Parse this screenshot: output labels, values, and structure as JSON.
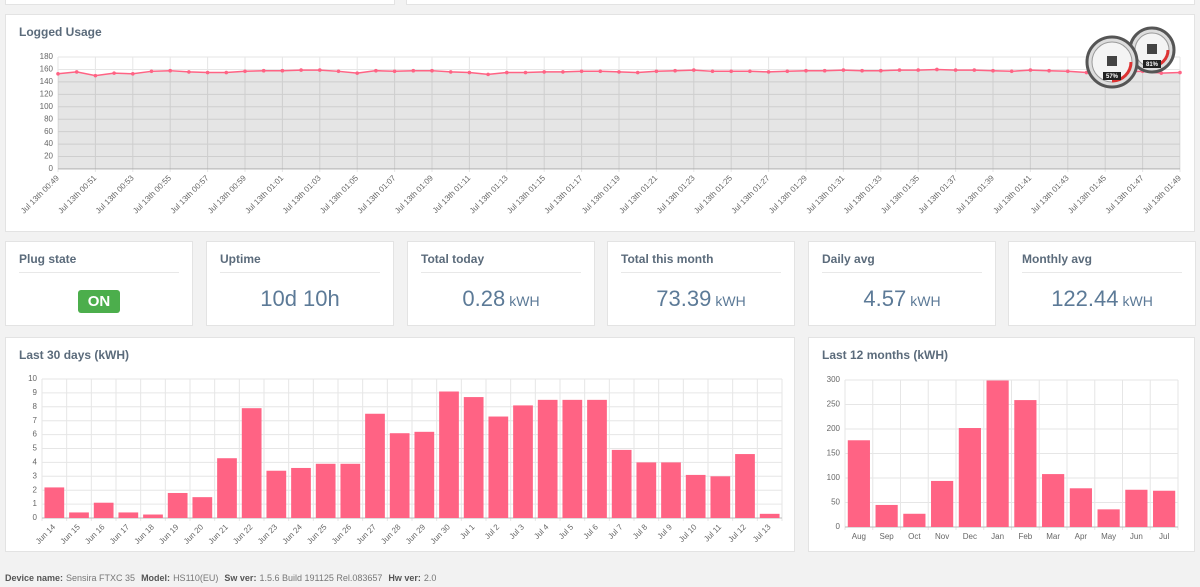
{
  "logged_usage": {
    "title": "Logged Usage",
    "chart": {
      "type": "line",
      "categories": [
        "Jul 13th 00:49",
        null,
        "Jul 13th 00:51",
        null,
        "Jul 13th 00:53",
        null,
        "Jul 13th 00:55",
        null,
        "Jul 13th 00:57",
        null,
        "Jul 13th 00:59",
        null,
        "Jul 13th 01:01",
        null,
        "Jul 13th 01:03",
        null,
        "Jul 13th 01:05",
        null,
        "Jul 13th 01:07",
        null,
        "Jul 13th 01:09",
        null,
        "Jul 13th 01:11",
        null,
        "Jul 13th 01:13",
        null,
        "Jul 13th 01:15",
        null,
        "Jul 13th 01:17",
        null,
        "Jul 13th 01:19",
        null,
        "Jul 13th 01:21",
        null,
        "Jul 13th 01:23",
        null,
        "Jul 13th 01:25",
        null,
        "Jul 13th 01:27",
        null,
        "Jul 13th 01:29",
        null,
        "Jul 13th 01:31",
        null,
        "Jul 13th 01:33",
        null,
        "Jul 13th 01:35",
        null,
        "Jul 13th 01:37",
        null,
        "Jul 13th 01:39",
        null,
        "Jul 13th 01:41",
        null,
        "Jul 13th 01:43",
        null,
        "Jul 13th 01:45",
        null,
        "Jul 13th 01:47",
        null,
        "Jul 13th 01:49"
      ],
      "values": [
        153,
        156,
        150,
        154,
        153,
        157,
        158,
        156,
        155,
        155,
        157,
        158,
        158,
        159,
        159,
        157,
        154,
        158,
        157,
        158,
        158,
        156,
        155,
        152,
        155,
        155,
        156,
        156,
        157,
        157,
        156,
        155,
        157,
        158,
        159,
        157,
        157,
        157,
        156,
        157,
        158,
        158,
        159,
        158,
        158,
        159,
        159,
        160,
        159,
        159,
        158,
        157,
        159,
        158,
        157,
        155,
        155,
        156,
        157,
        154,
        155
      ],
      "color": "#ff6384",
      "ylim": [
        0,
        180
      ],
      "yticks": [
        0,
        20,
        40,
        60,
        80,
        100,
        120,
        140,
        160,
        180
      ],
      "grid": true
    }
  },
  "gauges": [
    "57%",
    "81%"
  ],
  "cards": [
    {
      "title": "Plug state",
      "value": "ON"
    },
    {
      "title": "Uptime",
      "value": "10d 10h"
    },
    {
      "title": "Total today",
      "value": 0.28,
      "unit": "kWH"
    },
    {
      "title": "Total this month",
      "value": 73.39,
      "unit": "kWH"
    },
    {
      "title": "Daily avg",
      "value": 4.57,
      "unit": "kWH"
    },
    {
      "title": "Monthly avg",
      "value": 122.44,
      "unit": "kWH"
    }
  ],
  "last_30_days": {
    "title": "Last 30 days (kWH)",
    "chart": {
      "type": "bar",
      "categories": [
        "Jun 14",
        "Jun 15",
        "Jun 16",
        "Jun 17",
        "Jun 18",
        "Jun 19",
        "Jun 20",
        "Jun 21",
        "Jun 22",
        "Jun 23",
        "Jun 24",
        "Jun 25",
        "Jun 26",
        "Jun 27",
        "Jun 28",
        "Jun 29",
        "Jun 30",
        "Jul 1",
        "Jul 2",
        "Jul 3",
        "Jul 4",
        "Jul 5",
        "Jul 6",
        "Jul 7",
        "Jul 8",
        "Jul 9",
        "Jul 10",
        "Jul 11",
        "Jul 12",
        "Jul 13"
      ],
      "values": [
        2.2,
        0.4,
        1.1,
        0.4,
        0.25,
        1.8,
        1.5,
        4.3,
        7.9,
        3.4,
        3.6,
        3.9,
        3.9,
        7.5,
        6.1,
        6.2,
        9.1,
        8.7,
        7.3,
        8.1,
        8.5,
        8.5,
        8.5,
        4.9,
        4.0,
        4.0,
        3.1,
        3.0,
        4.6,
        0.3
      ],
      "color": "#ff6384",
      "ylim": [
        0,
        10
      ],
      "yticks": [
        0,
        1,
        2,
        3,
        4,
        5,
        6,
        7,
        8,
        9,
        10
      ],
      "grid": true
    }
  },
  "last_12_months": {
    "title": "Last 12 months (kWH)",
    "chart": {
      "type": "bar",
      "categories": [
        "Aug",
        "Sep",
        "Oct",
        "Nov",
        "Dec",
        "Jan",
        "Feb",
        "Mar",
        "Apr",
        "May",
        "Jun",
        "Jul"
      ],
      "values": [
        177,
        45,
        27,
        94,
        202,
        299,
        259,
        108,
        79,
        36,
        76,
        74
      ],
      "color": "#ff6384",
      "ylim": [
        0,
        300
      ],
      "yticks": [
        0,
        50,
        100,
        150,
        200,
        250,
        300
      ],
      "grid": true
    }
  },
  "footer": [
    {
      "label": "Device name:",
      "value": "Sensira FTXC 35"
    },
    {
      "label": "Model:",
      "value": "HS110(EU)"
    },
    {
      "label": "Sw ver:",
      "value": "1.5.6 Build 191125 Rel.083657"
    },
    {
      "label": "Hw ver:",
      "value": "2.0"
    }
  ]
}
